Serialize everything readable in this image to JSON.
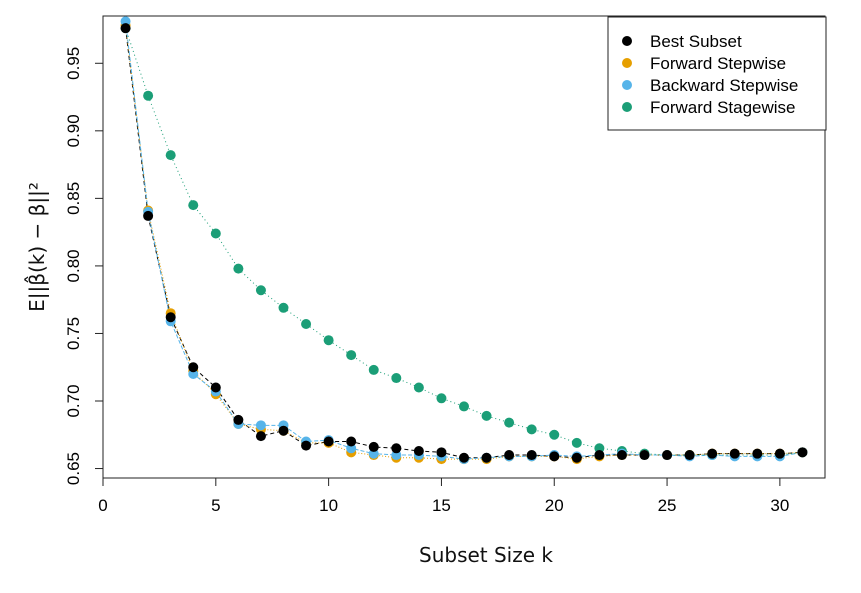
{
  "chart_data": {
    "type": "scatter",
    "xlabel": "Subset Size k",
    "ylabel": "E||β̂(k) − β||²",
    "xlim": [
      0,
      32
    ],
    "ylim": [
      0.643,
      0.985
    ],
    "xticks": [
      "0",
      "5",
      "10",
      "15",
      "20",
      "25",
      "30"
    ],
    "yticks": [
      "0.65",
      "0.70",
      "0.75",
      "0.80",
      "0.85",
      "0.90",
      "0.95"
    ],
    "legend_position": "top-right",
    "grid": false,
    "series": [
      {
        "name": "Best Subset",
        "color": "#000000",
        "x": [
          1,
          2,
          3,
          4,
          5,
          6,
          7,
          8,
          9,
          10,
          11,
          12,
          13,
          14,
          15,
          16,
          17,
          18,
          19,
          20,
          21,
          22,
          23,
          24,
          25,
          26,
          27,
          28,
          29,
          30,
          31
        ],
        "values": [
          0.976,
          0.837,
          0.762,
          0.725,
          0.71,
          0.686,
          0.674,
          0.678,
          0.667,
          0.67,
          0.67,
          0.666,
          0.665,
          0.663,
          0.662,
          0.658,
          0.658,
          0.66,
          0.66,
          0.659,
          0.658,
          0.66,
          0.66,
          0.66,
          0.66,
          0.66,
          0.661,
          0.661,
          0.661,
          0.661,
          0.662
        ]
      },
      {
        "name": "Forward Stepwise",
        "color": "#E69F00",
        "x": [
          1,
          2,
          3,
          4,
          5,
          6,
          7,
          8,
          9,
          10,
          11,
          12,
          13,
          14,
          15,
          16,
          17,
          18,
          19,
          20,
          21,
          22,
          23,
          24,
          25,
          26,
          27,
          28,
          29,
          30,
          31
        ],
        "values": [
          0.978,
          0.841,
          0.765,
          0.722,
          0.705,
          0.683,
          0.679,
          0.678,
          0.669,
          0.669,
          0.662,
          0.66,
          0.658,
          0.658,
          0.657,
          0.657,
          0.657,
          0.659,
          0.659,
          0.659,
          0.657,
          0.659,
          0.66,
          0.66,
          0.66,
          0.66,
          0.661,
          0.661,
          0.661,
          0.661,
          0.662
        ]
      },
      {
        "name": "Backward Stepwise",
        "color": "#56B4E9",
        "x": [
          1,
          2,
          3,
          4,
          5,
          6,
          7,
          8,
          9,
          10,
          11,
          12,
          13,
          14,
          15,
          16,
          17,
          18,
          19,
          20,
          21,
          22,
          23,
          24,
          25,
          26,
          27,
          28,
          29,
          30,
          31
        ],
        "values": [
          0.981,
          0.84,
          0.759,
          0.72,
          0.707,
          0.683,
          0.682,
          0.682,
          0.67,
          0.671,
          0.665,
          0.661,
          0.66,
          0.66,
          0.659,
          0.657,
          0.658,
          0.659,
          0.659,
          0.66,
          0.659,
          0.66,
          0.661,
          0.66,
          0.66,
          0.659,
          0.66,
          0.659,
          0.659,
          0.659,
          0.662
        ]
      },
      {
        "name": "Forward Stagewise",
        "color": "#1B9E77",
        "x": [
          1,
          2,
          3,
          4,
          5,
          6,
          7,
          8,
          9,
          10,
          11,
          12,
          13,
          14,
          15,
          16,
          17,
          18,
          19,
          20,
          21,
          22,
          23,
          24,
          25,
          26,
          27,
          28,
          29,
          30,
          31
        ],
        "values": [
          0.976,
          0.926,
          0.882,
          0.845,
          0.824,
          0.798,
          0.782,
          0.769,
          0.757,
          0.745,
          0.734,
          0.723,
          0.717,
          0.71,
          0.702,
          0.696,
          0.689,
          0.684,
          0.679,
          0.675,
          0.669,
          0.665,
          0.663,
          0.661,
          0.66,
          0.66,
          0.66,
          0.66,
          0.66,
          0.66,
          0.662
        ]
      }
    ]
  }
}
